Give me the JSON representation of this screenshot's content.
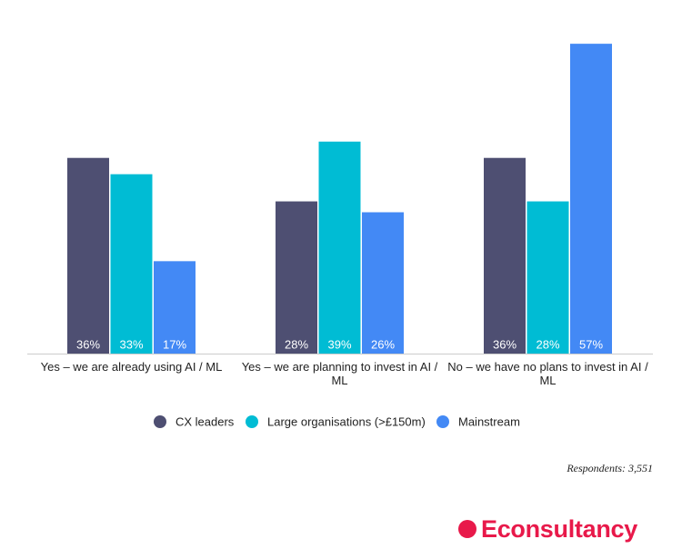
{
  "chart_data": {
    "type": "bar",
    "categories": [
      "Yes – we are already using AI / ML",
      "Yes – we are planning to invest in AI / ML",
      "No – we have no plans to invest in AI / ML"
    ],
    "series": [
      {
        "name": "CX leaders",
        "color": "#4e4f72",
        "values": [
          36,
          28,
          36
        ],
        "value_labels": [
          "36%",
          "28%",
          "36%"
        ]
      },
      {
        "name": "Large organisations (>£150m)",
        "color": "#00bcd4",
        "values": [
          33,
          39,
          28
        ],
        "value_labels": [
          "33%",
          "39%",
          "28%"
        ]
      },
      {
        "name": "Mainstream",
        "color": "#4389f5",
        "values": [
          17,
          26,
          57
        ],
        "value_labels": [
          "17%",
          "26%",
          "57%"
        ]
      }
    ],
    "note": "Respondents: 3,551",
    "brand": "Econsultancy"
  }
}
